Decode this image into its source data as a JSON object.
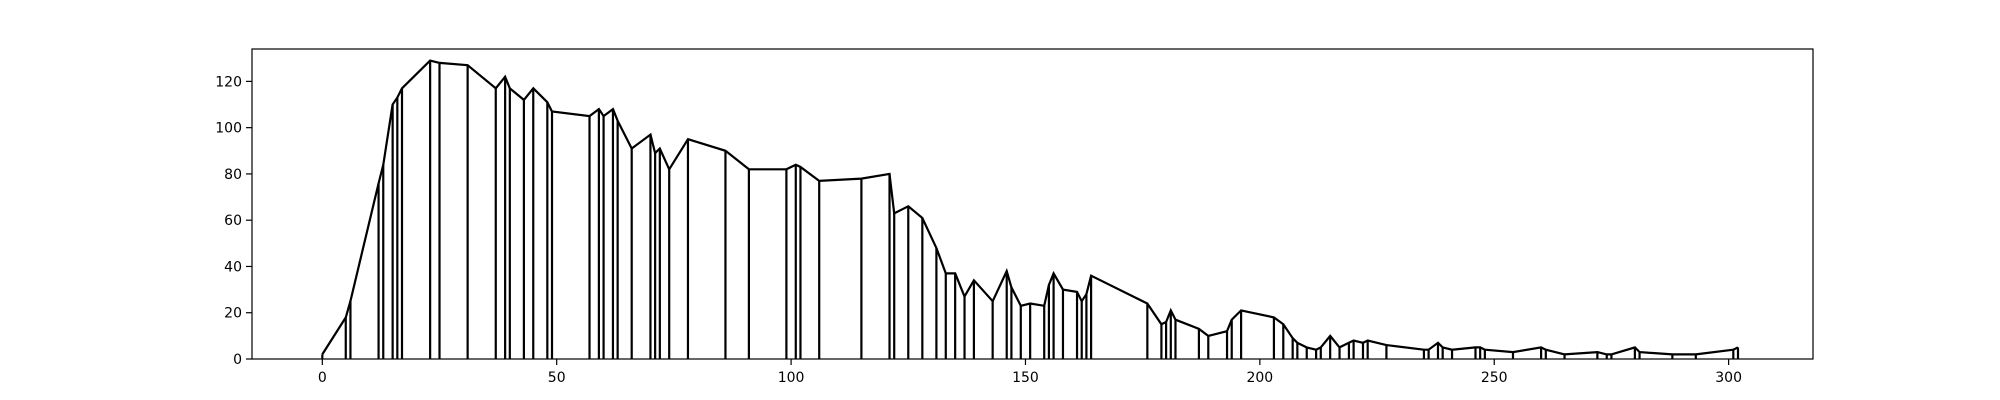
{
  "chart_data": {
    "type": "line",
    "title": "",
    "xlabel": "",
    "ylabel": "",
    "xlim": [
      -15,
      318
    ],
    "ylim": [
      0,
      134
    ],
    "grid": false,
    "legend": "none",
    "line_color": "#000000",
    "x_ticks": [
      0,
      50,
      100,
      150,
      200,
      250,
      300
    ],
    "y_ticks": [
      0,
      20,
      40,
      60,
      80,
      100,
      120
    ],
    "series": [
      {
        "x": [
          0,
          5,
          6,
          12,
          13,
          15,
          16,
          17,
          23,
          25,
          31,
          37,
          39,
          40,
          43,
          45,
          48,
          49,
          57,
          59,
          60,
          62,
          63,
          66,
          70,
          71,
          72,
          74,
          78,
          86,
          91,
          99,
          101,
          102,
          106,
          115,
          121,
          122,
          125,
          128,
          131,
          133,
          135,
          137,
          139,
          143,
          146,
          147,
          149,
          151,
          154,
          155,
          156,
          158,
          161,
          162,
          163,
          164,
          176,
          179,
          180,
          181,
          182,
          187,
          189,
          193,
          194,
          196,
          203,
          205,
          207,
          208,
          210,
          212,
          213,
          215,
          217,
          219,
          220,
          222,
          223,
          227,
          235,
          236,
          238,
          239,
          241,
          246,
          247,
          248,
          254,
          260,
          261,
          265,
          272,
          274,
          275,
          280,
          281,
          288,
          293,
          301,
          302
        ],
        "y": [
          2,
          18,
          25,
          76,
          84,
          110,
          113,
          117,
          129,
          128,
          127,
          117,
          122,
          117,
          112,
          117,
          111,
          107,
          105,
          108,
          105,
          108,
          103,
          91,
          97,
          89,
          91,
          82,
          95,
          90,
          82,
          82,
          84,
          83,
          77,
          78,
          80,
          63,
          66,
          61,
          48,
          37,
          37,
          27,
          34,
          25,
          38,
          31,
          23,
          24,
          23,
          32,
          37,
          30,
          29,
          25,
          28,
          36,
          24,
          15,
          16,
          21,
          17,
          13,
          10,
          12,
          17,
          21,
          18,
          15,
          9,
          7,
          5,
          4,
          5,
          10,
          5,
          7,
          8,
          7,
          8,
          6,
          4,
          4,
          7,
          5,
          4,
          5,
          5,
          4,
          3,
          5,
          4,
          2,
          3,
          2,
          2,
          5,
          3,
          2,
          2,
          4,
          5
        ]
      }
    ]
  }
}
